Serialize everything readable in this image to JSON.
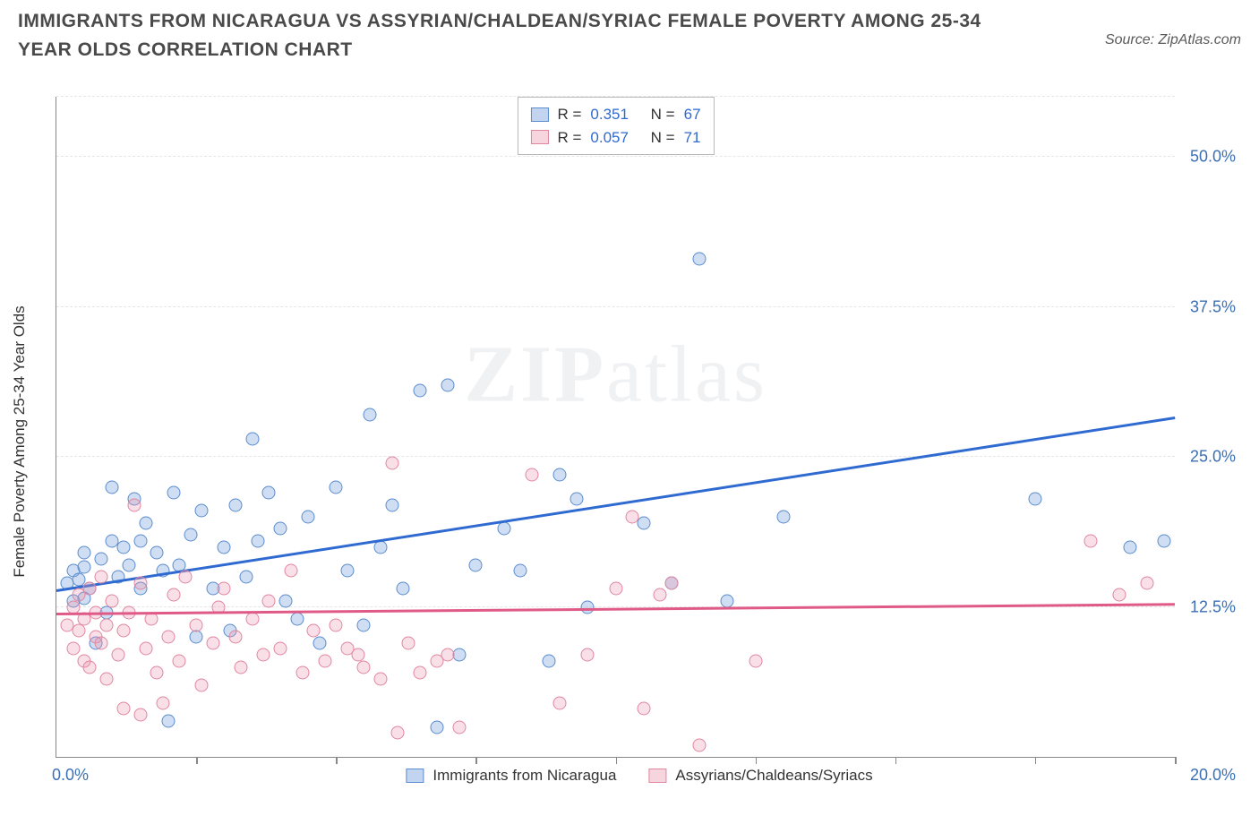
{
  "header": {
    "title": "IMMIGRANTS FROM NICARAGUA VS ASSYRIAN/CHALDEAN/SYRIAC FEMALE POVERTY AMONG 25-34 YEAR OLDS CORRELATION CHART",
    "source": "Source: ZipAtlas.com"
  },
  "watermark": {
    "part1": "ZIP",
    "part2": "atlas"
  },
  "chart": {
    "type": "scatter",
    "ylabel": "Female Poverty Among 25-34 Year Olds",
    "xlim": [
      0,
      20
    ],
    "ylim": [
      0,
      55
    ],
    "x_tick_positions": [
      0,
      2.5,
      5,
      7.5,
      10,
      12.5,
      15,
      17.5,
      20
    ],
    "y_gridlines": [
      12.5,
      25,
      37.5,
      50,
      55
    ],
    "y_tick_labels": {
      "12.5": "12.5%",
      "25": "25.0%",
      "37.5": "37.5%",
      "50": "50.0%"
    },
    "x_min_label": "0.0%",
    "x_max_label": "20.0%",
    "background_color": "#ffffff",
    "grid_color": "#e6e6e6",
    "axis_color": "#888888",
    "marker_radius": 7.5,
    "series": [
      {
        "name": "Immigrants from Nicaragua",
        "fill": "rgba(120,160,220,0.35)",
        "stroke": "#5a8cce",
        "trend_color": "#2f6ad1",
        "R": "0.351",
        "N": "67",
        "trend": {
          "x1": 0,
          "y1": 13.8,
          "x2": 20,
          "y2": 28.2
        },
        "points": [
          [
            0.2,
            14.5
          ],
          [
            0.3,
            15.5
          ],
          [
            0.3,
            13.0
          ],
          [
            0.4,
            14.8
          ],
          [
            0.5,
            17.0
          ],
          [
            0.5,
            13.2
          ],
          [
            0.5,
            15.8
          ],
          [
            0.6,
            14.0
          ],
          [
            0.7,
            9.5
          ],
          [
            0.8,
            16.5
          ],
          [
            0.9,
            12.0
          ],
          [
            1.0,
            22.5
          ],
          [
            1.0,
            18.0
          ],
          [
            1.1,
            15.0
          ],
          [
            1.2,
            17.5
          ],
          [
            1.3,
            16.0
          ],
          [
            1.4,
            21.5
          ],
          [
            1.5,
            18.0
          ],
          [
            1.5,
            14.0
          ],
          [
            1.6,
            19.5
          ],
          [
            1.8,
            17.0
          ],
          [
            1.9,
            15.5
          ],
          [
            2.0,
            3.0
          ],
          [
            2.1,
            22.0
          ],
          [
            2.2,
            16.0
          ],
          [
            2.4,
            18.5
          ],
          [
            2.5,
            10.0
          ],
          [
            2.6,
            20.5
          ],
          [
            2.8,
            14.0
          ],
          [
            3.0,
            17.5
          ],
          [
            3.1,
            10.5
          ],
          [
            3.2,
            21.0
          ],
          [
            3.4,
            15.0
          ],
          [
            3.5,
            26.5
          ],
          [
            3.6,
            18.0
          ],
          [
            3.8,
            22.0
          ],
          [
            4.0,
            19.0
          ],
          [
            4.1,
            13.0
          ],
          [
            4.3,
            11.5
          ],
          [
            4.5,
            20.0
          ],
          [
            4.7,
            9.5
          ],
          [
            5.0,
            22.5
          ],
          [
            5.2,
            15.5
          ],
          [
            5.5,
            11.0
          ],
          [
            5.6,
            28.5
          ],
          [
            5.8,
            17.5
          ],
          [
            6.0,
            21.0
          ],
          [
            6.2,
            14.0
          ],
          [
            6.5,
            30.5
          ],
          [
            6.8,
            2.5
          ],
          [
            7.0,
            31.0
          ],
          [
            7.2,
            8.5
          ],
          [
            7.5,
            16.0
          ],
          [
            8.0,
            19.0
          ],
          [
            8.3,
            15.5
          ],
          [
            8.8,
            8.0
          ],
          [
            9.0,
            23.5
          ],
          [
            9.3,
            21.5
          ],
          [
            9.5,
            12.5
          ],
          [
            10.5,
            19.5
          ],
          [
            11.0,
            14.5
          ],
          [
            11.5,
            41.5
          ],
          [
            12.0,
            13.0
          ],
          [
            13.0,
            20.0
          ],
          [
            17.5,
            21.5
          ],
          [
            19.2,
            17.5
          ],
          [
            19.8,
            18.0
          ]
        ]
      },
      {
        "name": "Assyrians/Chaldeans/Syriacs",
        "fill": "rgba(235,150,175,0.30)",
        "stroke": "#e1869f",
        "trend_color": "#e05a88",
        "R": "0.057",
        "N": "71",
        "trend": {
          "x1": 0,
          "y1": 11.8,
          "x2": 20,
          "y2": 12.6
        },
        "points": [
          [
            0.2,
            11.0
          ],
          [
            0.3,
            12.5
          ],
          [
            0.3,
            9.0
          ],
          [
            0.4,
            13.5
          ],
          [
            0.4,
            10.5
          ],
          [
            0.5,
            8.0
          ],
          [
            0.5,
            11.5
          ],
          [
            0.6,
            14.0
          ],
          [
            0.6,
            7.5
          ],
          [
            0.7,
            10.0
          ],
          [
            0.7,
            12.0
          ],
          [
            0.8,
            9.5
          ],
          [
            0.8,
            15.0
          ],
          [
            0.9,
            11.0
          ],
          [
            0.9,
            6.5
          ],
          [
            1.0,
            13.0
          ],
          [
            1.1,
            8.5
          ],
          [
            1.2,
            10.5
          ],
          [
            1.2,
            4.0
          ],
          [
            1.3,
            12.0
          ],
          [
            1.4,
            21.0
          ],
          [
            1.5,
            14.5
          ],
          [
            1.5,
            3.5
          ],
          [
            1.6,
            9.0
          ],
          [
            1.7,
            11.5
          ],
          [
            1.8,
            7.0
          ],
          [
            1.9,
            4.5
          ],
          [
            2.0,
            10.0
          ],
          [
            2.1,
            13.5
          ],
          [
            2.2,
            8.0
          ],
          [
            2.3,
            15.0
          ],
          [
            2.5,
            11.0
          ],
          [
            2.6,
            6.0
          ],
          [
            2.8,
            9.5
          ],
          [
            2.9,
            12.5
          ],
          [
            3.0,
            14.0
          ],
          [
            3.2,
            10.0
          ],
          [
            3.3,
            7.5
          ],
          [
            3.5,
            11.5
          ],
          [
            3.7,
            8.5
          ],
          [
            3.8,
            13.0
          ],
          [
            4.0,
            9.0
          ],
          [
            4.2,
            15.5
          ],
          [
            4.4,
            7.0
          ],
          [
            4.6,
            10.5
          ],
          [
            4.8,
            8.0
          ],
          [
            5.0,
            11.0
          ],
          [
            5.2,
            9.0
          ],
          [
            5.4,
            8.5
          ],
          [
            5.5,
            7.5
          ],
          [
            5.8,
            6.5
          ],
          [
            6.0,
            24.5
          ],
          [
            6.1,
            2.0
          ],
          [
            6.3,
            9.5
          ],
          [
            6.5,
            7.0
          ],
          [
            6.8,
            8.0
          ],
          [
            7.0,
            8.5
          ],
          [
            7.2,
            2.5
          ],
          [
            8.5,
            23.5
          ],
          [
            9.0,
            4.5
          ],
          [
            9.5,
            8.5
          ],
          [
            10.0,
            14.0
          ],
          [
            10.3,
            20.0
          ],
          [
            10.5,
            4.0
          ],
          [
            10.8,
            13.5
          ],
          [
            11.0,
            14.5
          ],
          [
            11.5,
            1.0
          ],
          [
            12.5,
            8.0
          ],
          [
            18.5,
            18.0
          ],
          [
            19.0,
            13.5
          ],
          [
            19.5,
            14.5
          ]
        ]
      }
    ],
    "bottom_legend": [
      {
        "swatch": "s0",
        "label": "Immigrants from Nicaragua"
      },
      {
        "swatch": "s1",
        "label": "Assyrians/Chaldeans/Syriacs"
      }
    ]
  }
}
